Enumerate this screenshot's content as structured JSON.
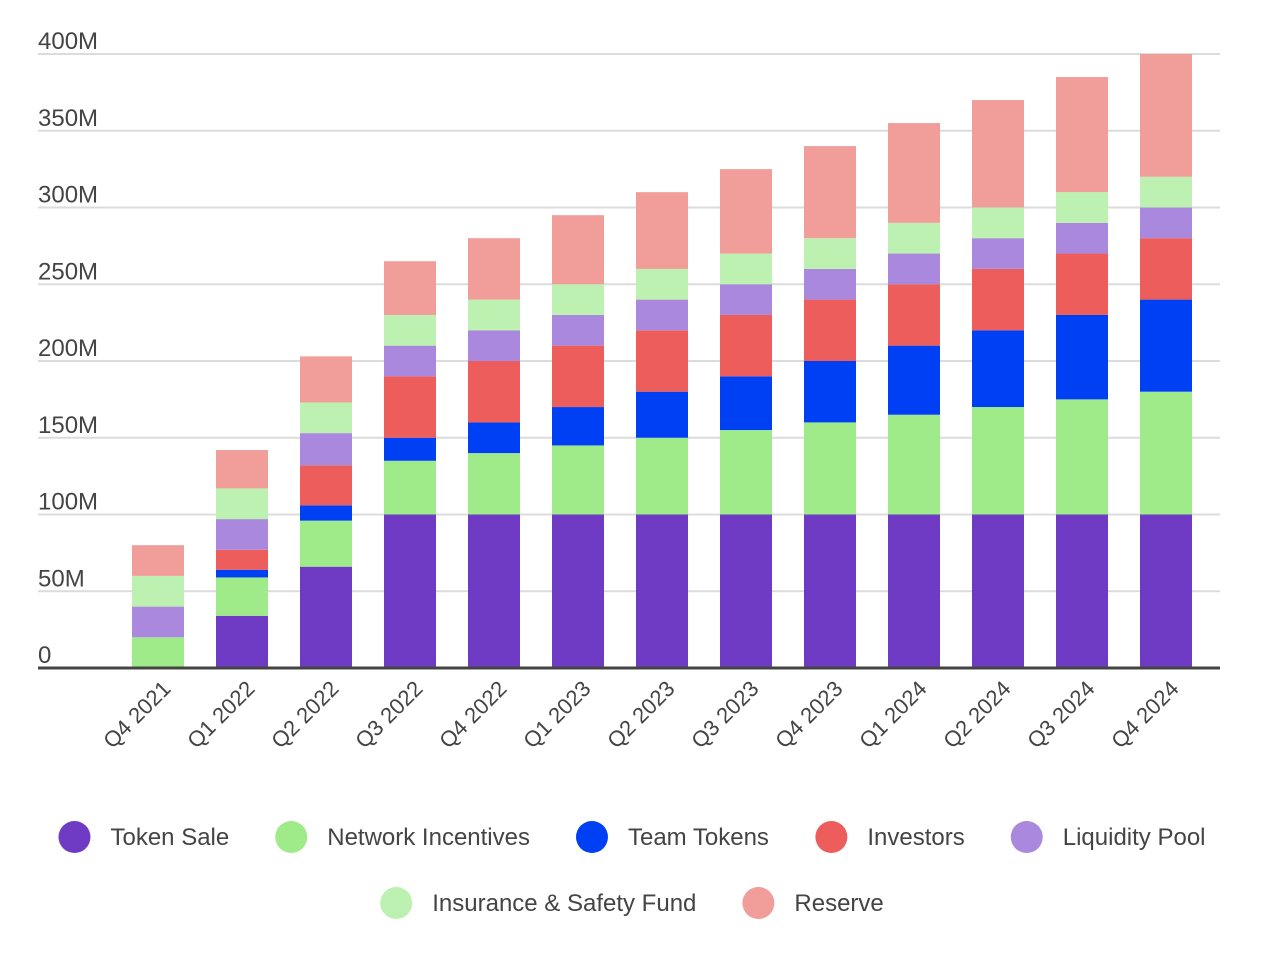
{
  "chart_data": {
    "type": "bar",
    "stacked": true,
    "title": "",
    "xlabel": "",
    "ylabel": "",
    "ylim": [
      0,
      400
    ],
    "y_unit_suffix": "M",
    "y_ticks": [
      "0",
      "50M",
      "100M",
      "150M",
      "200M",
      "250M",
      "300M",
      "350M",
      "400M"
    ],
    "grid": true,
    "legend_position": "bottom",
    "categories": [
      "Q4 2021",
      "Q1 2022",
      "Q2 2022",
      "Q3 2022",
      "Q4 2022",
      "Q1 2023",
      "Q2 2023",
      "Q3 2023",
      "Q4 2023",
      "Q1 2024",
      "Q2 2024",
      "Q3 2024",
      "Q4 2024"
    ],
    "series": [
      {
        "name": "Token Sale",
        "color": "#6f3bc4",
        "values": [
          0,
          34,
          66,
          100,
          100,
          100,
          100,
          100,
          100,
          100,
          100,
          100,
          100
        ]
      },
      {
        "name": "Network Incentives",
        "color": "#9feb8a",
        "values": [
          20,
          25,
          30,
          35,
          40,
          45,
          50,
          55,
          60,
          65,
          70,
          75,
          80
        ]
      },
      {
        "name": "Team Tokens",
        "color": "#0040f5",
        "values": [
          0,
          5,
          10,
          15,
          20,
          25,
          30,
          35,
          40,
          45,
          50,
          55,
          60
        ]
      },
      {
        "name": "Investors",
        "color": "#ec5d5b",
        "values": [
          0,
          13,
          26,
          40,
          40,
          40,
          40,
          40,
          40,
          40,
          40,
          40,
          40
        ]
      },
      {
        "name": "Liquidity Pool",
        "color": "#a988dd",
        "values": [
          20,
          20,
          21,
          20,
          20,
          20,
          20,
          20,
          20,
          20,
          20,
          20,
          20
        ]
      },
      {
        "name": "Insurance & Safety Fund",
        "color": "#bcf1b1",
        "values": [
          20,
          20,
          20,
          20,
          20,
          20,
          20,
          20,
          20,
          20,
          20,
          20,
          20
        ]
      },
      {
        "name": "Reserve",
        "color": "#f19d9a",
        "values": [
          20,
          25,
          30,
          35,
          40,
          45,
          50,
          55,
          60,
          65,
          70,
          75,
          80
        ]
      }
    ]
  }
}
